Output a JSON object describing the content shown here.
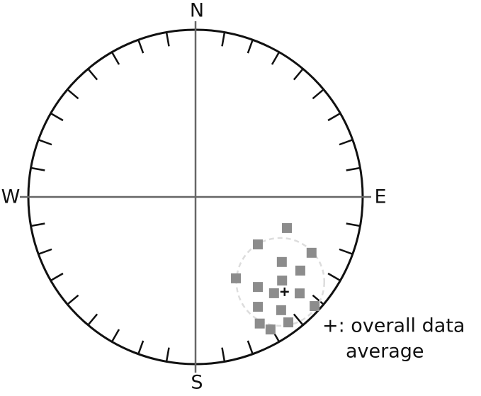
{
  "chart_data": {
    "type": "stereonet",
    "directions": {
      "N": "N",
      "E": "E",
      "S": "S",
      "W": "W"
    },
    "annotation": [
      "+: overall data",
      "average"
    ],
    "point_color": "#8c8c8c",
    "declination": [
      108.8,
      127.3,
      115.7,
      127,
      125.1,
      153.6,
      134,
      145.3,
      140.8,
      132.8,
      132.5,
      150.4,
      142.9,
      143.5,
      153.1,
      150.5
    ],
    "inclination": [
      41.8,
      51.3,
      24,
      35.6,
      24.4,
      44.8,
      28.8,
      34.8,
      26.6,
      16.2,
      3.8,
      25.4,
      16.2,
      7.4,
      16.2,
      9.8
    ],
    "mean": {
      "declination": 136.8,
      "inclination": 23.2
    }
  }
}
